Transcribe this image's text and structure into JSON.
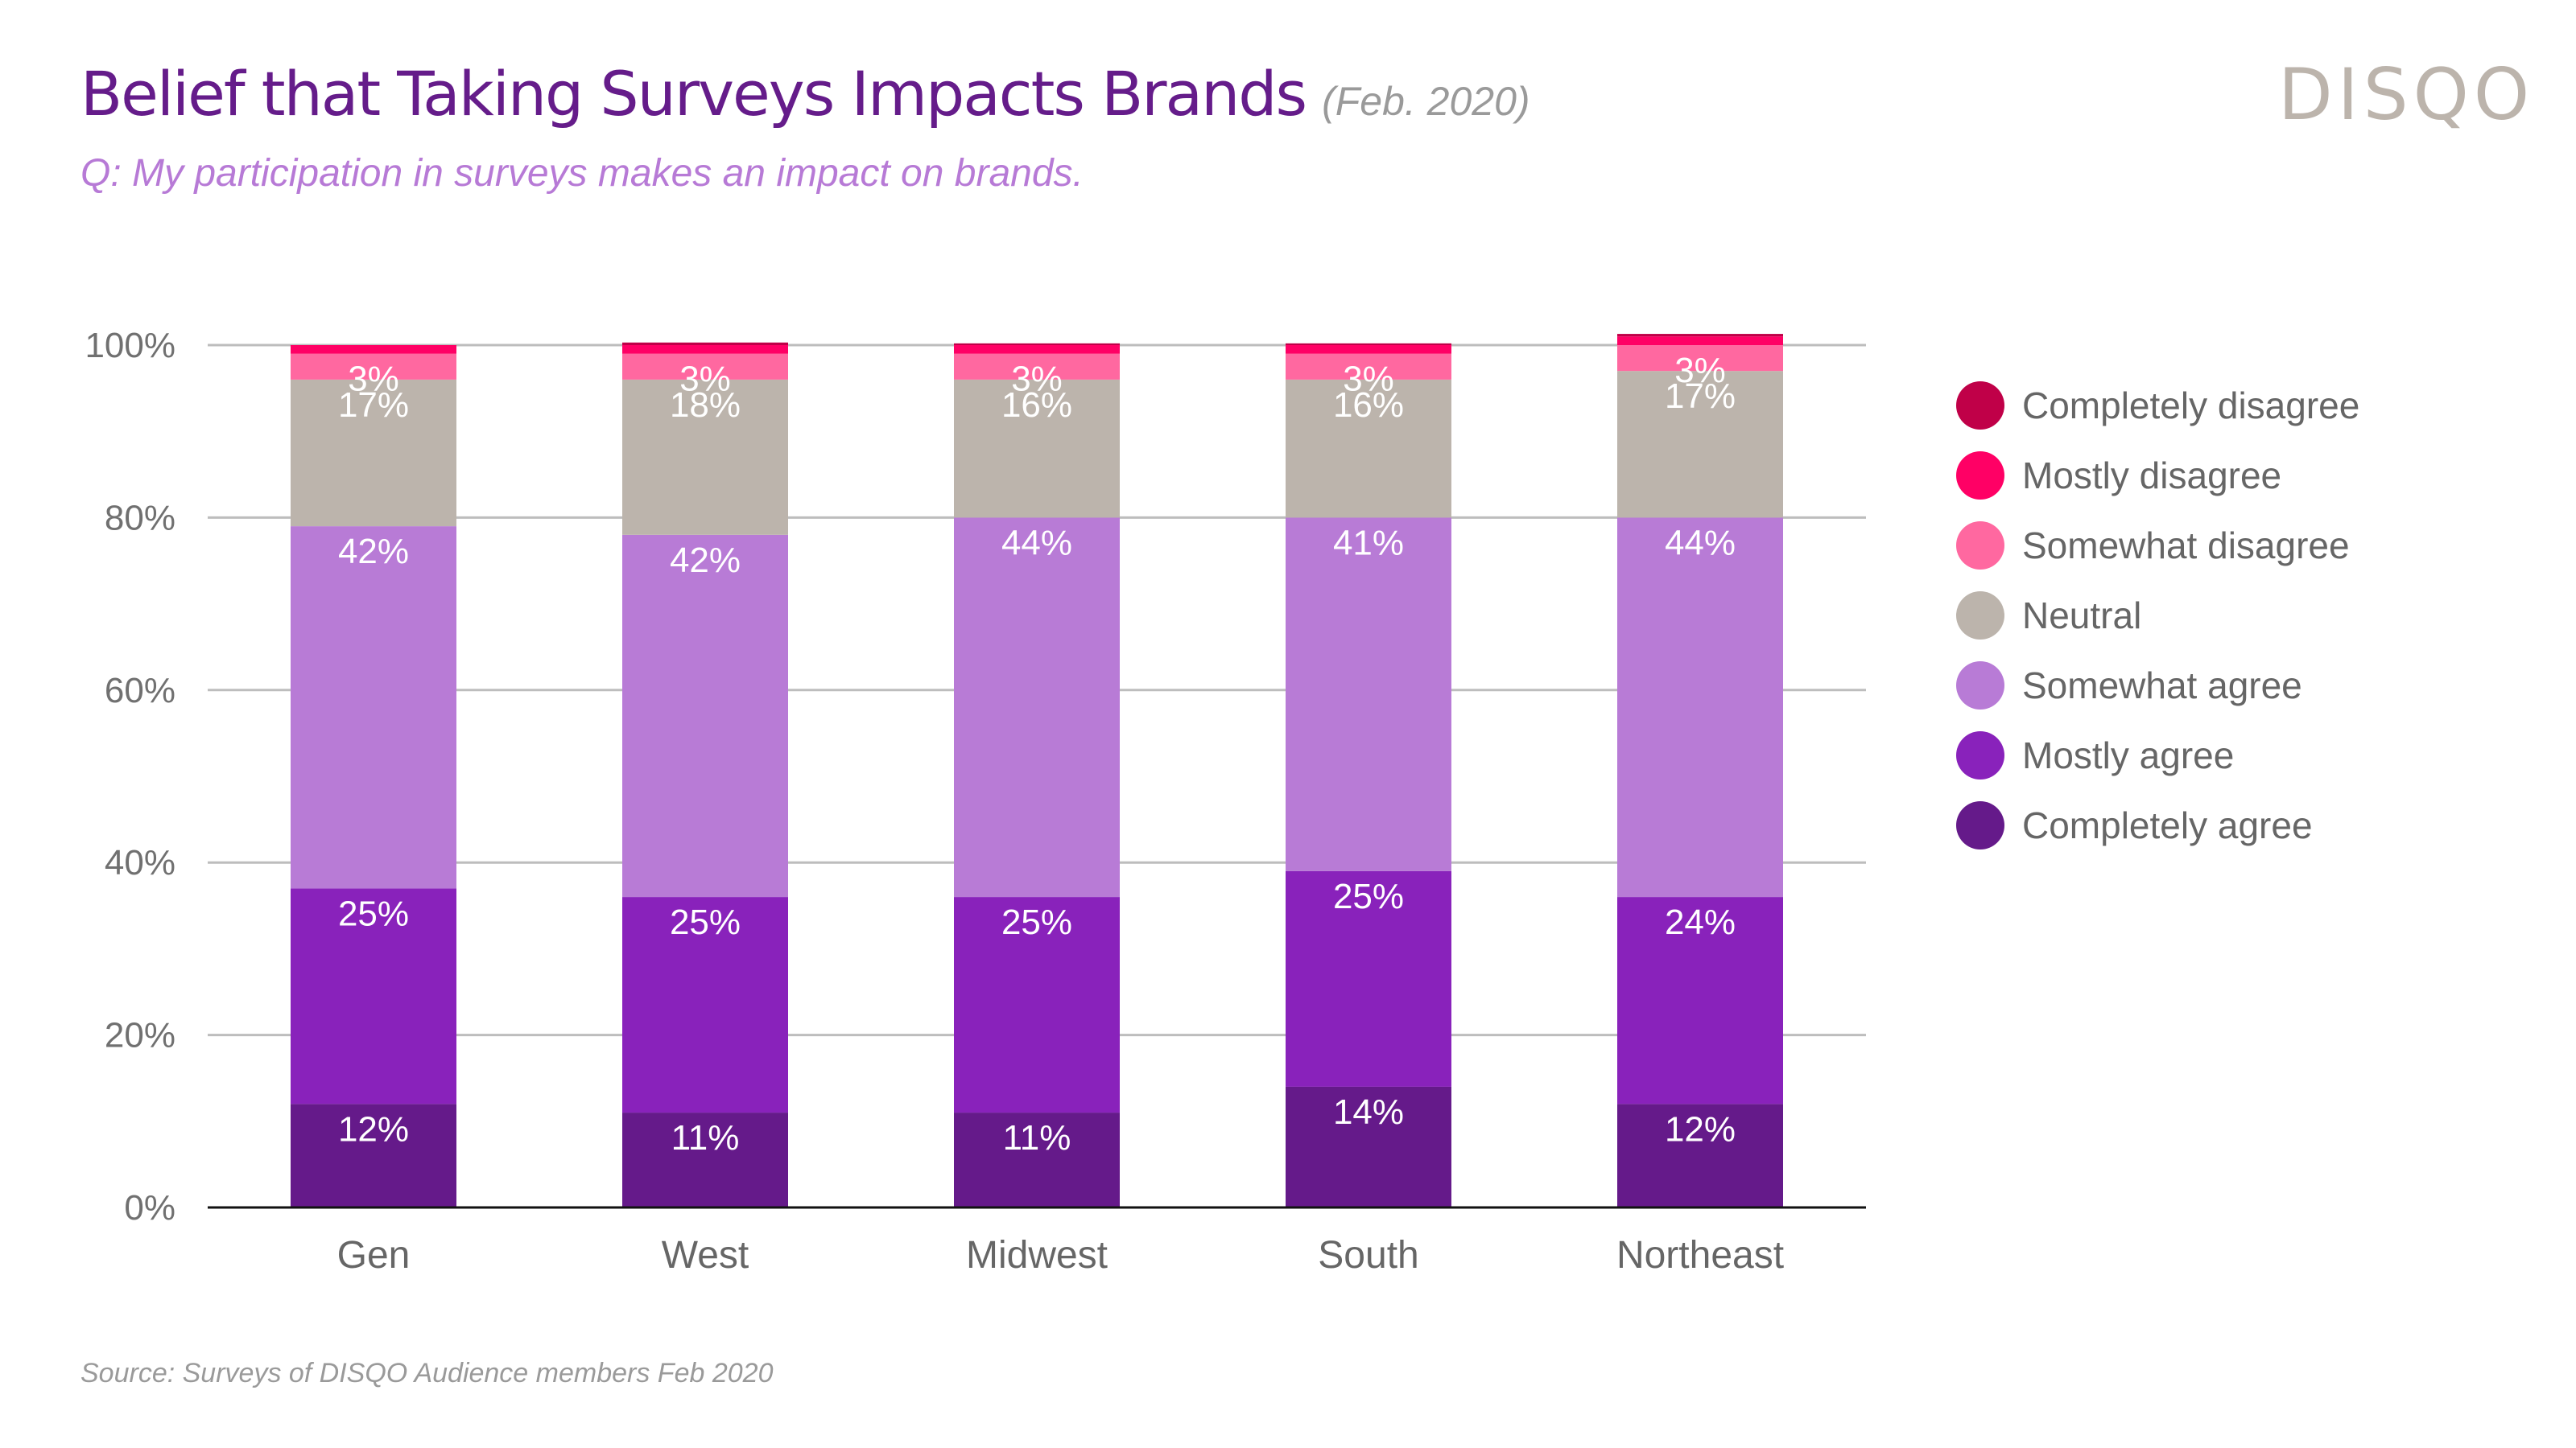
{
  "header": {
    "title": "Belief that Taking Surveys Impacts Brands",
    "title_date": "(Feb. 2020)",
    "subtitle": "Q: My participation in surveys makes an impact on brands.",
    "logo": "DISQO"
  },
  "footer": {
    "source": "Source: Surveys of DISQO Audience members Feb 2020"
  },
  "chart_data": {
    "type": "bar",
    "stacked": true,
    "title": "Belief that Taking Surveys Impacts Brands",
    "xlabel": "",
    "ylabel": "",
    "ylim": [
      0,
      100
    ],
    "yticks": [
      "0%",
      "20%",
      "40%",
      "60%",
      "80%",
      "100%"
    ],
    "grid": true,
    "legend_position": "right",
    "categories": [
      "Gen",
      "West",
      "Midwest",
      "South",
      "Northeast"
    ],
    "series": [
      {
        "name": "Completely agree",
        "color": "#651a8a",
        "values": [
          12,
          11,
          11,
          14,
          12
        ],
        "labels": [
          "12%",
          "11%",
          "11%",
          "14%",
          "12%"
        ]
      },
      {
        "name": "Mostly agree",
        "color": "#8922bb",
        "values": [
          25,
          25,
          25,
          25,
          24
        ],
        "labels": [
          "25%",
          "25%",
          "25%",
          "25%",
          "24%"
        ]
      },
      {
        "name": "Somewhat agree",
        "color": "#b87bd6",
        "values": [
          42,
          42,
          44,
          41,
          44
        ],
        "labels": [
          "42%",
          "42%",
          "44%",
          "41%",
          "44%"
        ]
      },
      {
        "name": "Neutral",
        "color": "#bcb4ac",
        "values": [
          17,
          18,
          16,
          16,
          17
        ],
        "labels": [
          "17%",
          "18%",
          "16%",
          "16%",
          "17%"
        ]
      },
      {
        "name": "Somewhat disagree",
        "color": "#ff68a0",
        "values": [
          3,
          3,
          3,
          3,
          3
        ],
        "labels": [
          "3%",
          "3%",
          "3%",
          "3%",
          "3%"
        ]
      },
      {
        "name": "Mostly disagree",
        "color": "#ff0065",
        "values": [
          1,
          1,
          1,
          1,
          1
        ],
        "labels": [
          "",
          "",
          "",
          "",
          ""
        ]
      },
      {
        "name": "Completely disagree",
        "color": "#c00048",
        "values": [
          0,
          0.3,
          0.2,
          0.2,
          0.3
        ],
        "labels": [
          "",
          "",
          "",
          "",
          ""
        ]
      }
    ],
    "legend_order": [
      "Completely disagree",
      "Mostly disagree",
      "Somewhat disagree",
      "Neutral",
      "Somewhat agree",
      "Mostly agree",
      "Completely agree"
    ]
  }
}
